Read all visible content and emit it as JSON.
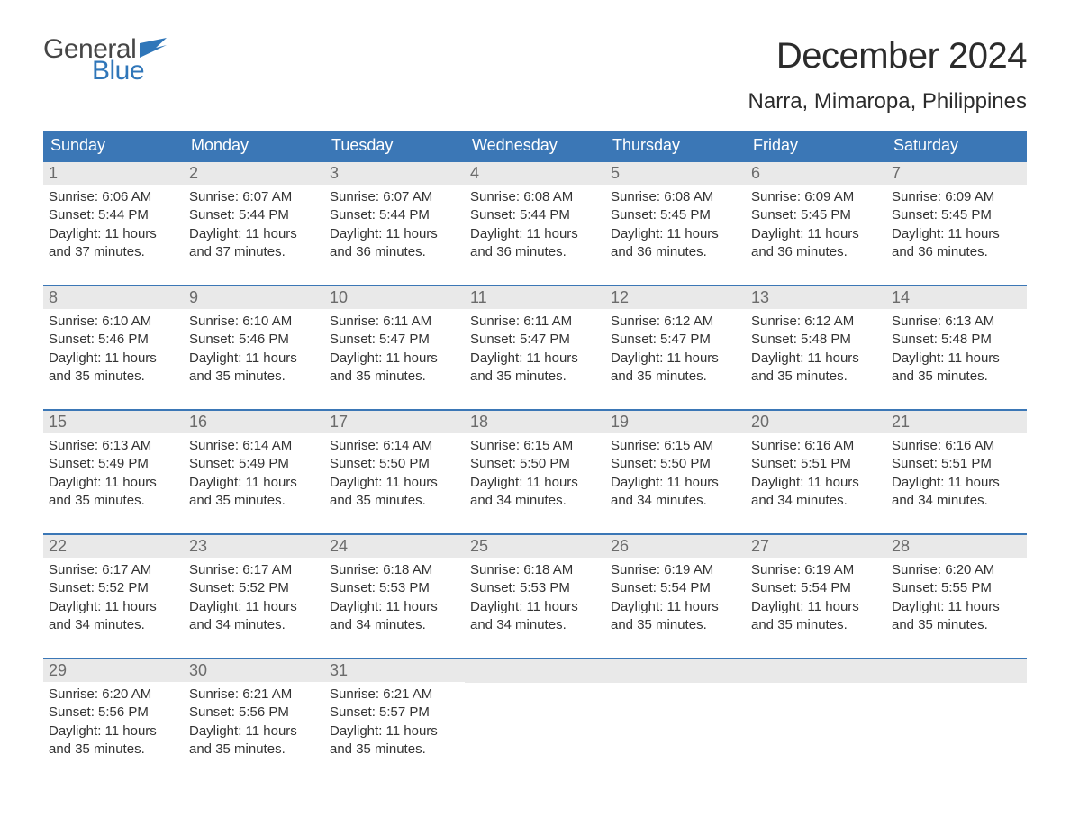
{
  "logo": {
    "word1": "General",
    "word2": "Blue"
  },
  "title": "December 2024",
  "location": "Narra, Mimaropa, Philippines",
  "colors": {
    "header_bg": "#3b77b6",
    "header_text": "#ffffff",
    "daynum_bg": "#e9e9e9",
    "daynum_text": "#6b6b6b",
    "body_text": "#333333",
    "logo_grey": "#464646",
    "logo_blue": "#2f76b9",
    "week_border": "#3b77b6",
    "page_bg": "#ffffff"
  },
  "typography": {
    "title_fontsize": 40,
    "location_fontsize": 24,
    "weekday_fontsize": 18,
    "daynum_fontsize": 18,
    "body_fontsize": 15
  },
  "weekdays": [
    "Sunday",
    "Monday",
    "Tuesday",
    "Wednesday",
    "Thursday",
    "Friday",
    "Saturday"
  ],
  "labels": {
    "sunrise": "Sunrise:",
    "sunset": "Sunset:",
    "daylight": "Daylight:"
  },
  "days": [
    {
      "n": 1,
      "sunrise": "6:06 AM",
      "sunset": "5:44 PM",
      "dl": "11 hours and 37 minutes."
    },
    {
      "n": 2,
      "sunrise": "6:07 AM",
      "sunset": "5:44 PM",
      "dl": "11 hours and 37 minutes."
    },
    {
      "n": 3,
      "sunrise": "6:07 AM",
      "sunset": "5:44 PM",
      "dl": "11 hours and 36 minutes."
    },
    {
      "n": 4,
      "sunrise": "6:08 AM",
      "sunset": "5:44 PM",
      "dl": "11 hours and 36 minutes."
    },
    {
      "n": 5,
      "sunrise": "6:08 AM",
      "sunset": "5:45 PM",
      "dl": "11 hours and 36 minutes."
    },
    {
      "n": 6,
      "sunrise": "6:09 AM",
      "sunset": "5:45 PM",
      "dl": "11 hours and 36 minutes."
    },
    {
      "n": 7,
      "sunrise": "6:09 AM",
      "sunset": "5:45 PM",
      "dl": "11 hours and 36 minutes."
    },
    {
      "n": 8,
      "sunrise": "6:10 AM",
      "sunset": "5:46 PM",
      "dl": "11 hours and 35 minutes."
    },
    {
      "n": 9,
      "sunrise": "6:10 AM",
      "sunset": "5:46 PM",
      "dl": "11 hours and 35 minutes."
    },
    {
      "n": 10,
      "sunrise": "6:11 AM",
      "sunset": "5:47 PM",
      "dl": "11 hours and 35 minutes."
    },
    {
      "n": 11,
      "sunrise": "6:11 AM",
      "sunset": "5:47 PM",
      "dl": "11 hours and 35 minutes."
    },
    {
      "n": 12,
      "sunrise": "6:12 AM",
      "sunset": "5:47 PM",
      "dl": "11 hours and 35 minutes."
    },
    {
      "n": 13,
      "sunrise": "6:12 AM",
      "sunset": "5:48 PM",
      "dl": "11 hours and 35 minutes."
    },
    {
      "n": 14,
      "sunrise": "6:13 AM",
      "sunset": "5:48 PM",
      "dl": "11 hours and 35 minutes."
    },
    {
      "n": 15,
      "sunrise": "6:13 AM",
      "sunset": "5:49 PM",
      "dl": "11 hours and 35 minutes."
    },
    {
      "n": 16,
      "sunrise": "6:14 AM",
      "sunset": "5:49 PM",
      "dl": "11 hours and 35 minutes."
    },
    {
      "n": 17,
      "sunrise": "6:14 AM",
      "sunset": "5:50 PM",
      "dl": "11 hours and 35 minutes."
    },
    {
      "n": 18,
      "sunrise": "6:15 AM",
      "sunset": "5:50 PM",
      "dl": "11 hours and 34 minutes."
    },
    {
      "n": 19,
      "sunrise": "6:15 AM",
      "sunset": "5:50 PM",
      "dl": "11 hours and 34 minutes."
    },
    {
      "n": 20,
      "sunrise": "6:16 AM",
      "sunset": "5:51 PM",
      "dl": "11 hours and 34 minutes."
    },
    {
      "n": 21,
      "sunrise": "6:16 AM",
      "sunset": "5:51 PM",
      "dl": "11 hours and 34 minutes."
    },
    {
      "n": 22,
      "sunrise": "6:17 AM",
      "sunset": "5:52 PM",
      "dl": "11 hours and 34 minutes."
    },
    {
      "n": 23,
      "sunrise": "6:17 AM",
      "sunset": "5:52 PM",
      "dl": "11 hours and 34 minutes."
    },
    {
      "n": 24,
      "sunrise": "6:18 AM",
      "sunset": "5:53 PM",
      "dl": "11 hours and 34 minutes."
    },
    {
      "n": 25,
      "sunrise": "6:18 AM",
      "sunset": "5:53 PM",
      "dl": "11 hours and 34 minutes."
    },
    {
      "n": 26,
      "sunrise": "6:19 AM",
      "sunset": "5:54 PM",
      "dl": "11 hours and 35 minutes."
    },
    {
      "n": 27,
      "sunrise": "6:19 AM",
      "sunset": "5:54 PM",
      "dl": "11 hours and 35 minutes."
    },
    {
      "n": 28,
      "sunrise": "6:20 AM",
      "sunset": "5:55 PM",
      "dl": "11 hours and 35 minutes."
    },
    {
      "n": 29,
      "sunrise": "6:20 AM",
      "sunset": "5:56 PM",
      "dl": "11 hours and 35 minutes."
    },
    {
      "n": 30,
      "sunrise": "6:21 AM",
      "sunset": "5:56 PM",
      "dl": "11 hours and 35 minutes."
    },
    {
      "n": 31,
      "sunrise": "6:21 AM",
      "sunset": "5:57 PM",
      "dl": "11 hours and 35 minutes."
    }
  ],
  "calendar_layout": {
    "type": "table",
    "columns": 7,
    "rows": 5,
    "start_weekday_index": 0,
    "days_in_month": 31
  }
}
